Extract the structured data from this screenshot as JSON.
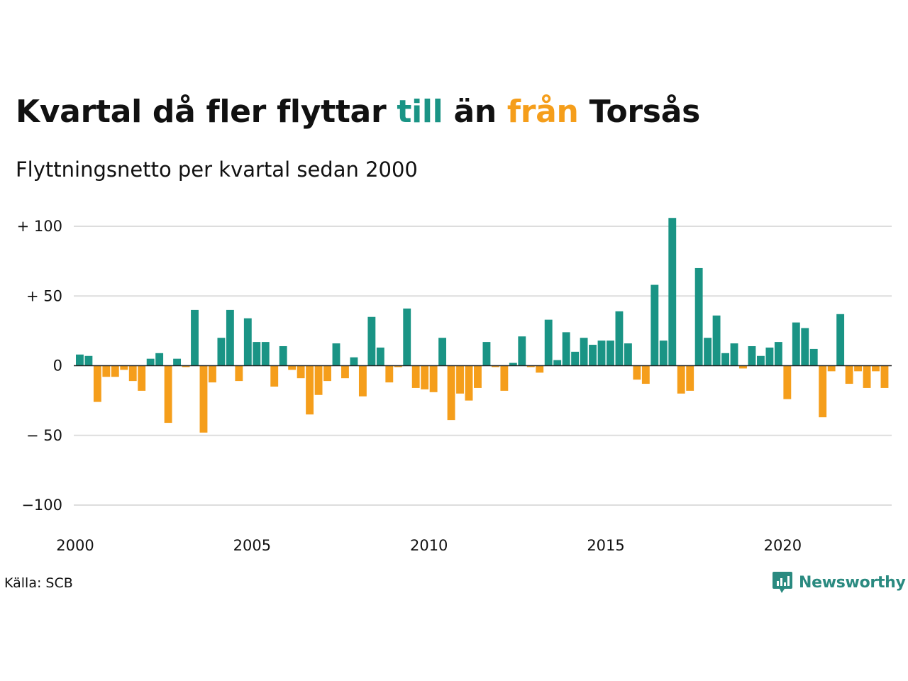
{
  "title": {
    "part1": "Kvartal då fler flyttar ",
    "till_word": "till",
    "part2": " än ",
    "fran_word": "från",
    "part3": " Torsås"
  },
  "subtitle": "Flyttningsnetto per kvartal sedan 2000",
  "source": "Källa: SCB",
  "brand": "Newsworthy",
  "colors": {
    "positive": "#1a9485",
    "negative": "#f59e1b",
    "grid": "#dddddd",
    "brand": "#2a8a80"
  },
  "chart_data": {
    "type": "bar",
    "x_start": 2000,
    "x_step": 0.25,
    "xlim": [
      2000,
      2023
    ],
    "ylim": [
      -110,
      110
    ],
    "yticks": [
      {
        "value": 100,
        "label": "+ 100"
      },
      {
        "value": 50,
        "label": "+  50"
      },
      {
        "value": 0,
        "label": "0"
      },
      {
        "value": -50,
        "label": "− 50"
      },
      {
        "value": -100,
        "label": "−100"
      }
    ],
    "xticks": [
      {
        "value": 2000,
        "label": "2000"
      },
      {
        "value": 2005,
        "label": "2005"
      },
      {
        "value": 2010,
        "label": "2010"
      },
      {
        "value": 2015,
        "label": "2015"
      },
      {
        "value": 2020,
        "label": "2020"
      }
    ],
    "grid": true,
    "values": [
      8,
      7,
      -26,
      -8,
      -8,
      -3,
      -11,
      -18,
      5,
      9,
      -41,
      5,
      -1,
      40,
      -48,
      -12,
      20,
      40,
      -11,
      34,
      17,
      17,
      -15,
      14,
      -3,
      -9,
      -35,
      -21,
      -11,
      16,
      -9,
      6,
      -22,
      35,
      13,
      -12,
      -1,
      41,
      -16,
      -17,
      -19,
      20,
      -39,
      -20,
      -25,
      -16,
      17,
      -1,
      -18,
      2,
      21,
      -1,
      -5,
      33,
      4,
      24,
      10,
      20,
      15,
      18,
      18,
      39,
      16,
      -10,
      -13,
      58,
      18,
      106,
      -20,
      -18,
      70,
      20,
      36,
      9,
      16,
      -2,
      14,
      7,
      13,
      17,
      -24,
      31,
      27,
      12,
      -37,
      -4,
      37,
      -13,
      -4,
      -16,
      -4,
      -16
    ]
  }
}
